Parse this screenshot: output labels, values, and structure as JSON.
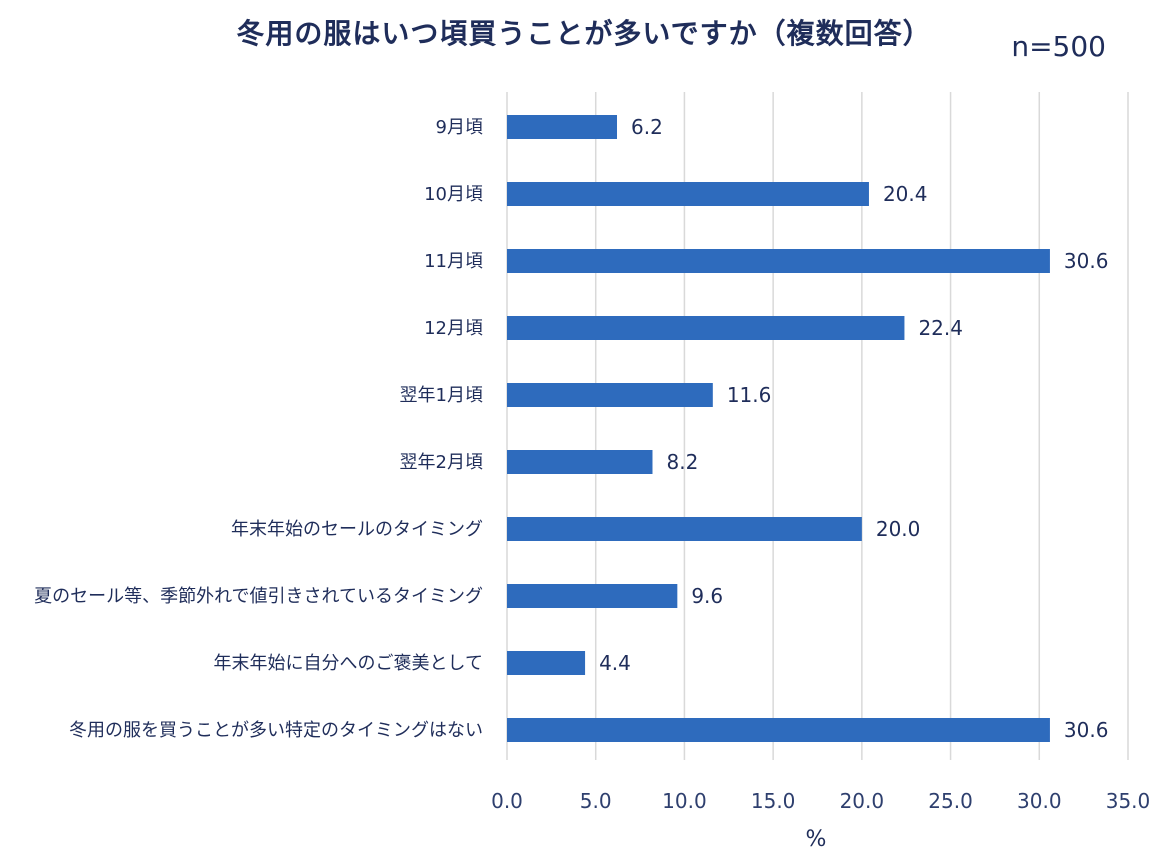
{
  "chart_data": {
    "type": "bar",
    "orientation": "horizontal",
    "title": "冬用の服はいつ頃買うことが多いですか（複数回答）",
    "subtitle": "n=500",
    "xlabel": "%",
    "ylabel": "",
    "xlim": [
      0,
      35
    ],
    "xticks": [
      "0.0",
      "5.0",
      "10.0",
      "15.0",
      "20.0",
      "25.0",
      "30.0",
      "35.0"
    ],
    "grid": true,
    "legend": "none",
    "bar_color": "#2e6bbd",
    "categories": [
      "9月頃",
      "10月頃",
      "11月頃",
      "12月頃",
      "翌年1月頃",
      "翌年2月頃",
      "年末年始のセールのタイミング",
      "夏のセール等、季節外れで値引きされているタイミング",
      "年末年始に自分へのご褒美として",
      "冬用の服を買うことが多い特定のタイミングはない"
    ],
    "values": [
      6.2,
      20.4,
      30.6,
      22.4,
      11.6,
      8.2,
      20.0,
      9.6,
      4.4,
      30.6
    ],
    "value_labels": [
      "6.2",
      "20.4",
      "30.6",
      "22.4",
      "11.6",
      "8.2",
      "20.0",
      "9.6",
      "4.4",
      "30.6"
    ]
  }
}
